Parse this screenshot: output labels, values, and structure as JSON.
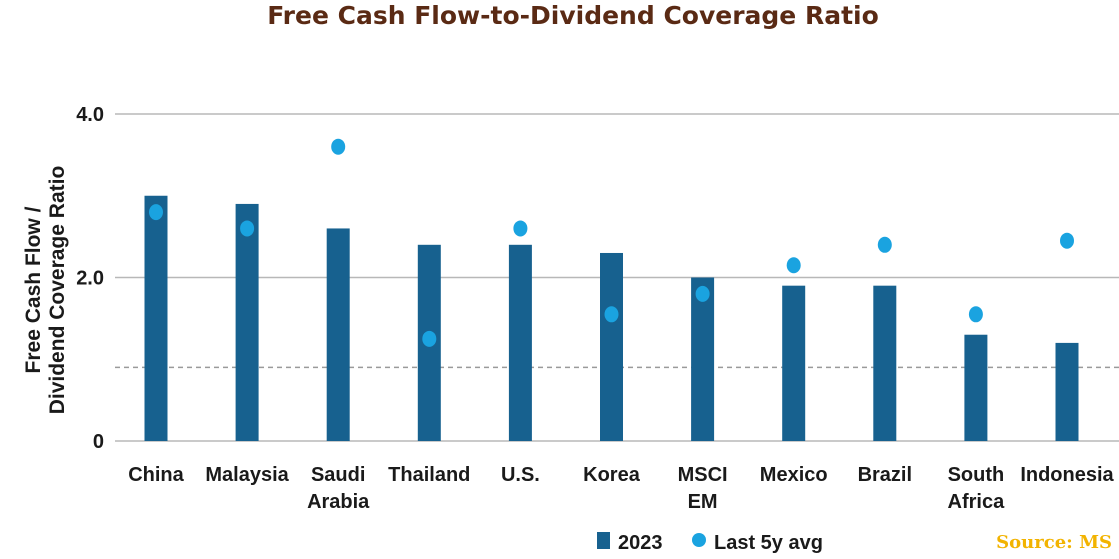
{
  "chart_data": {
    "type": "bar",
    "title": "Free Cash Flow-to-Dividend Coverage Ratio",
    "ylabel_lines": [
      "Free Cash Flow /",
      "Dividend Coverage Ratio"
    ],
    "xlabel": "",
    "ylim": [
      0,
      4.0
    ],
    "yticks": [
      0,
      2.0,
      4.0
    ],
    "ytick_labels": [
      "0",
      "2.0",
      "4.0"
    ],
    "reference_line": 0.9,
    "categories": [
      [
        "China"
      ],
      [
        "Malaysia"
      ],
      [
        "Saudi",
        "Arabia"
      ],
      [
        "Thailand"
      ],
      [
        "U.S."
      ],
      [
        "Korea"
      ],
      [
        "MSCI",
        "EM"
      ],
      [
        "Mexico"
      ],
      [
        "Brazil"
      ],
      [
        "South",
        "Africa"
      ],
      [
        "Indonesia"
      ]
    ],
    "series": [
      {
        "name": "2023",
        "type": "bar",
        "color": "#17618f",
        "values": [
          3.0,
          2.9,
          2.6,
          2.4,
          2.4,
          2.3,
          2.0,
          1.9,
          1.9,
          1.3,
          1.2
        ]
      },
      {
        "name": "Last 5y avg",
        "type": "point",
        "color": "#1aa3e0",
        "values": [
          2.8,
          2.6,
          3.6,
          1.25,
          2.6,
          1.55,
          1.8,
          2.15,
          2.4,
          1.55,
          2.45
        ]
      }
    ],
    "legend": {
      "position": "bottom"
    },
    "grid": true
  },
  "source": "Source: MS"
}
